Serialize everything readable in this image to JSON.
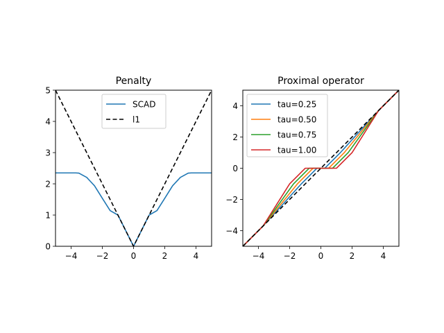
{
  "chart_data": [
    {
      "type": "line",
      "title": "Penalty",
      "xlabel": "",
      "ylabel": "",
      "xlim": [
        -5,
        5
      ],
      "ylim": [
        0,
        5
      ],
      "xticks": [
        -4,
        -2,
        0,
        2,
        4
      ],
      "xtick_labels": [
        "−4",
        "−2",
        "0",
        "2",
        "4"
      ],
      "yticks": [
        0,
        1,
        2,
        3,
        4,
        5
      ],
      "ytick_labels": [
        "0",
        "1",
        "2",
        "3",
        "4",
        "5"
      ],
      "grid": false,
      "legend": "upper-center",
      "scad_params": {
        "lambda": 1.0,
        "a": 3.7
      },
      "series": [
        {
          "name": "SCAD",
          "color": "#1f77b4",
          "style": "solid",
          "x": [
            -5,
            -4.5,
            -4,
            -3.7,
            -3.5,
            -3,
            -2.5,
            -2,
            -1.5,
            -1,
            -0.5,
            0,
            0.5,
            1,
            1.5,
            2,
            2.5,
            3,
            3.5,
            3.7,
            4,
            4.5,
            5
          ],
          "y": [
            2.35,
            2.35,
            2.35,
            2.35,
            2.344,
            2.206,
            1.937,
            1.537,
            1.144,
            1.0,
            0.5,
            0,
            0.5,
            1.0,
            1.144,
            1.537,
            1.937,
            2.206,
            2.344,
            2.35,
            2.35,
            2.35,
            2.35
          ]
        },
        {
          "name": "l1",
          "color": "#000000",
          "style": "dashed",
          "x": [
            -5,
            0,
            5
          ],
          "y": [
            5,
            0,
            5
          ]
        }
      ]
    },
    {
      "type": "line",
      "title": "Proximal operator",
      "xlabel": "",
      "ylabel": "",
      "xlim": [
        -5,
        5
      ],
      "ylim": [
        -5,
        5
      ],
      "xticks": [
        -4,
        -2,
        0,
        2,
        4
      ],
      "xtick_labels": [
        "−4",
        "−2",
        "0",
        "2",
        "4"
      ],
      "yticks": [
        -4,
        -2,
        0,
        2,
        4
      ],
      "ytick_labels": [
        "−4",
        "−2",
        "0",
        "2",
        "4"
      ],
      "grid": false,
      "legend": "upper-left",
      "scad_params": {
        "lambda": 1.0,
        "a": 3.7
      },
      "series": [
        {
          "name": "tau=0.25",
          "color": "#1f77b4",
          "style": "solid",
          "tau": 0.25
        },
        {
          "name": "tau=0.50",
          "color": "#ff7f0e",
          "style": "solid",
          "tau": 0.5
        },
        {
          "name": "tau=0.75",
          "color": "#2ca02c",
          "style": "solid",
          "tau": 0.75
        },
        {
          "name": "tau=1.00",
          "color": "#d62728",
          "style": "solid",
          "tau": 1.0
        },
        {
          "name": "",
          "color": "#000000",
          "style": "dashed",
          "x": [
            -5,
            5
          ],
          "y": [
            -5,
            5
          ]
        }
      ]
    }
  ]
}
